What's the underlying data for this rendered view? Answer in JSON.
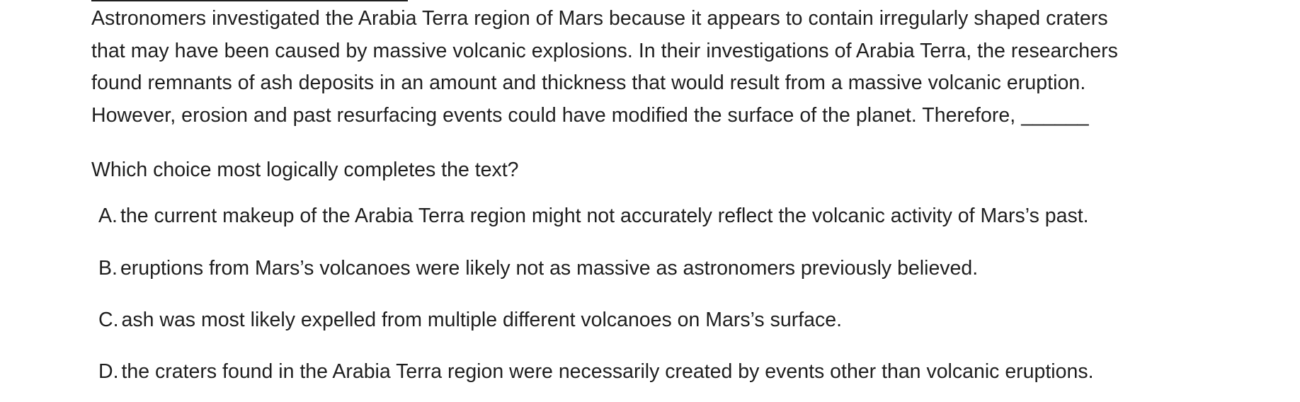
{
  "passage": {
    "lines": [
      "Astronomers investigated the Arabia Terra region of Mars because it appears to contain irregularly shaped craters",
      "that may have been caused by massive volcanic explosions. In their investigations of Arabia Terra, the researchers",
      "found remnants of ash deposits in an amount and thickness that would result from a massive volcanic eruption.",
      "However, erosion and past resurfacing events could have modified the surface of the planet. Therefore, ______"
    ]
  },
  "question": "Which choice most logically completes the text?",
  "choices": [
    {
      "letter": "A.",
      "text": "the current makeup of the Arabia Terra region might not accurately reflect the volcanic activity of Mars’s past."
    },
    {
      "letter": "B.",
      "text": "eruptions from Mars’s volcanoes were likely not as massive as astronomers previously believed."
    },
    {
      "letter": "C.",
      "text": "ash was most likely expelled from multiple different volcanoes on Mars’s surface."
    },
    {
      "letter": "D.",
      "text": "the craters found in the Arabia Terra region were necessarily created by events other than volcanic eruptions."
    }
  ]
}
